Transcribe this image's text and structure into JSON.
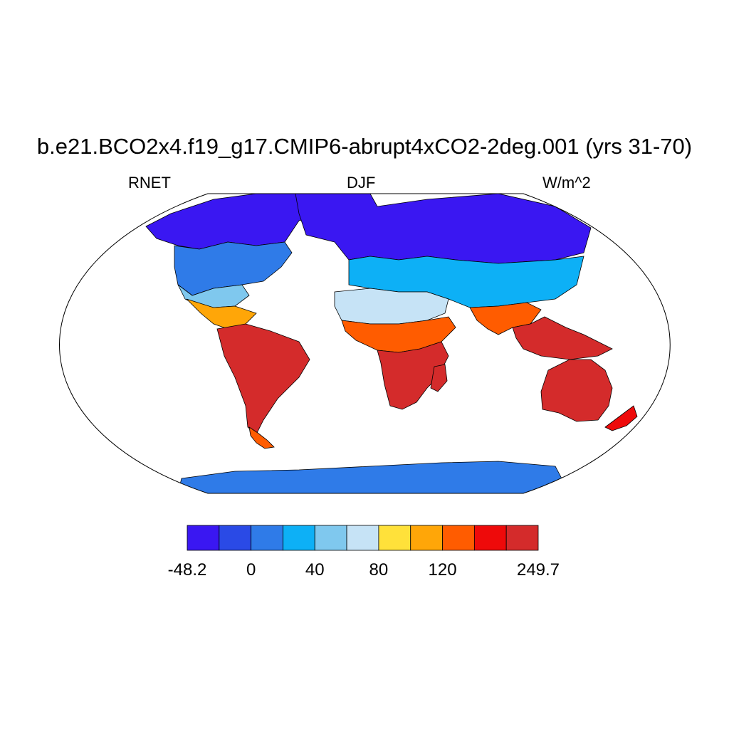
{
  "title": "b.e21.BCO2x4.f19_g17.CMIP6-abrupt4xCO2-2deg.001 (yrs 31-70)",
  "left_label": "RNET",
  "center_label": "DJF",
  "right_label": "W/m^2",
  "colorbar": {
    "colors": [
      "#3a17f2",
      "#2a4ae6",
      "#2f7be8",
      "#0db0f6",
      "#7fc8ee",
      "#c6e3f6",
      "#ffe13a",
      "#ffa608",
      "#ff5c00",
      "#ee0a0a",
      "#d42b2b"
    ],
    "tick_labels": [
      "-48.2",
      "0",
      "40",
      "80",
      "120",
      "249.7"
    ]
  },
  "map_regions": [
    {
      "name": "north-america-arctic",
      "value": -40
    },
    {
      "name": "north-america-mid",
      "value": 10
    },
    {
      "name": "north-america-south",
      "value": 50
    },
    {
      "name": "central-america",
      "value": 110
    },
    {
      "name": "south-america",
      "value": 230
    },
    {
      "name": "patagonia",
      "value": 150
    },
    {
      "name": "greenland-europe-north",
      "value": -30
    },
    {
      "name": "europe-asia-mid",
      "value": 20
    },
    {
      "name": "sahara",
      "value": 60
    },
    {
      "name": "sahel",
      "value": 120
    },
    {
      "name": "southern-africa",
      "value": 220
    },
    {
      "name": "madagascar",
      "value": 210
    },
    {
      "name": "india",
      "value": 140
    },
    {
      "name": "southeast-asia",
      "value": 200
    },
    {
      "name": "australia",
      "value": 235
    },
    {
      "name": "new-zealand",
      "value": 170
    },
    {
      "name": "antarctica",
      "value": 0
    }
  ]
}
